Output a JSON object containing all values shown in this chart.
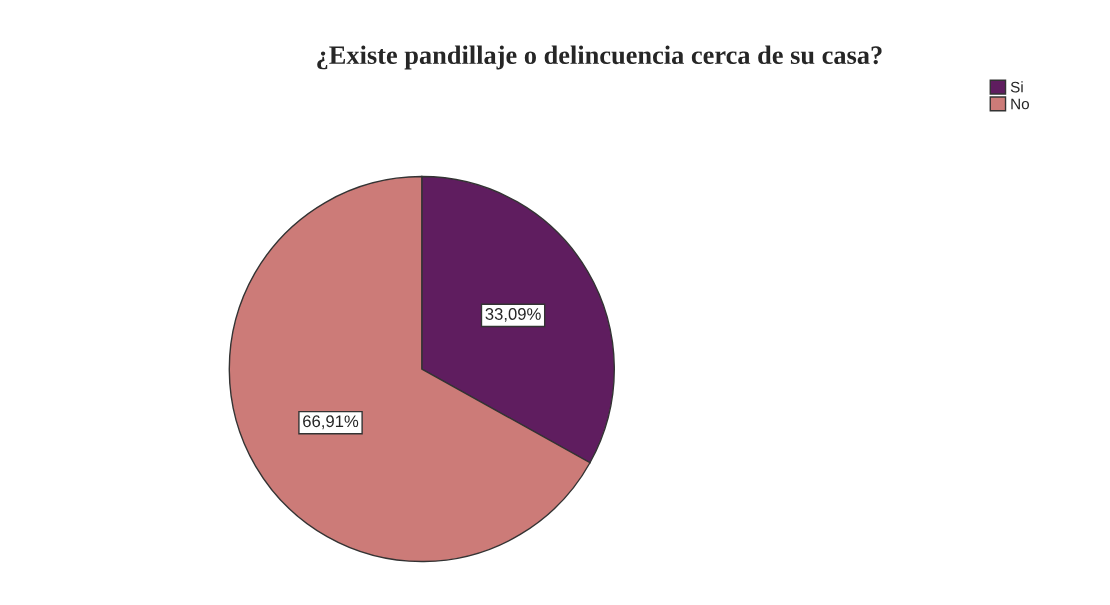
{
  "chart_data": {
    "type": "pie",
    "title": "¿Existe pandillaje o delincuencia cerca de su casa?",
    "categories": [
      "Si",
      "No"
    ],
    "values": [
      33.09,
      66.91
    ],
    "value_labels": [
      "33,09%",
      "66,91%"
    ],
    "colors": [
      "#5f1d5f",
      "#cc7b78"
    ],
    "legend": "top right"
  }
}
